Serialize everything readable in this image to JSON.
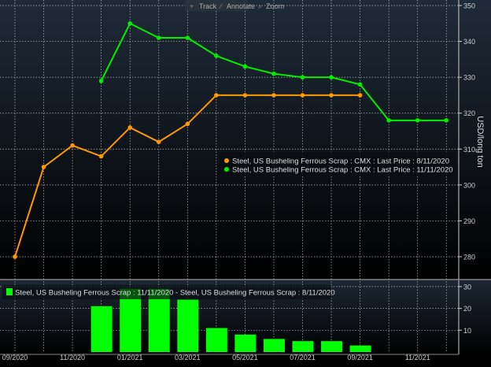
{
  "toolbar": {
    "track_label": "Track",
    "annotate_label": "Annotate",
    "zoom_label": "Zoom"
  },
  "chart_data": [
    {
      "type": "line",
      "ylabel": "USD/long ton",
      "ylim": [
        275,
        350
      ],
      "yticks": [
        280,
        290,
        300,
        310,
        320,
        330,
        340,
        350
      ],
      "x_months": [
        "2020-09",
        "2020-10",
        "2020-11",
        "2020-12",
        "2021-01",
        "2021-02",
        "2021-03",
        "2021-04",
        "2021-05",
        "2021-06",
        "2021-07",
        "2021-08",
        "2021-09",
        "2021-10",
        "2021-11",
        "2021-12"
      ],
      "grid": true,
      "legend_placement": "bottom-right",
      "series": [
        {
          "name": "Steel, US Busheling Ferrous Scrap : CMX : Last Price : 8/11/2020",
          "color": "#ff9900",
          "x": [
            "2020-09",
            "2020-10",
            "2020-11",
            "2020-12",
            "2021-01",
            "2021-02",
            "2021-03",
            "2021-04",
            "2021-05",
            "2021-06",
            "2021-07",
            "2021-08",
            "2021-09"
          ],
          "values": [
            280,
            305,
            311,
            308,
            316,
            312,
            317,
            325,
            325,
            325,
            325,
            325,
            325
          ]
        },
        {
          "name": "Steel, US Busheling Ferrous Scrap : CMX : Last Price : 11/11/2020",
          "color": "#00ee00",
          "x": [
            "2020-12",
            "2021-01",
            "2021-02",
            "2021-03",
            "2021-04",
            "2021-05",
            "2021-06",
            "2021-07",
            "2021-08",
            "2021-09",
            "2021-10",
            "2021-11",
            "2021-12"
          ],
          "values": [
            329,
            345,
            341,
            341,
            336,
            333,
            331,
            330,
            330,
            328,
            318,
            318,
            318
          ]
        }
      ]
    },
    {
      "type": "bar",
      "ylim": [
        0,
        32
      ],
      "yticks": [
        10,
        20,
        30
      ],
      "legend_placement": "top-left",
      "series": [
        {
          "name": "Steel, US Busheling Ferrous Scrap : 11/11/2020 - Steel, US Busheling Ferrous Scrap : 8/11/2020",
          "color": "#00ff00",
          "x": [
            "2020-12",
            "2021-01",
            "2021-02",
            "2021-03",
            "2021-04",
            "2021-05",
            "2021-06",
            "2021-07",
            "2021-08",
            "2021-09"
          ],
          "values": [
            21,
            29,
            29,
            24,
            11,
            8,
            6,
            5,
            5,
            3
          ]
        }
      ]
    }
  ],
  "xaxis": {
    "tick_labels": [
      "09/2020",
      "11/2020",
      "01/2021",
      "03/2021",
      "05/2021",
      "07/2021",
      "09/2021",
      "11/2021"
    ]
  }
}
